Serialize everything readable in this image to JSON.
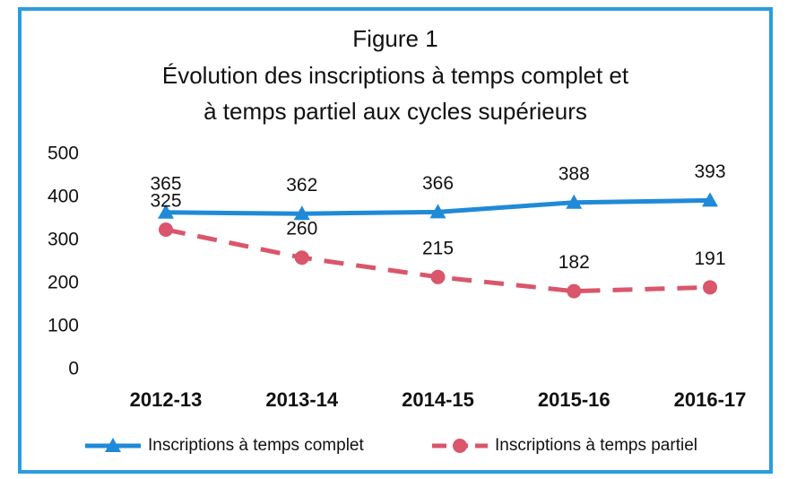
{
  "chart_data": {
    "type": "line",
    "title": "Figure 1",
    "subtitle": [
      "Évolution des inscriptions à temps complet et",
      "à temps partiel aux cycles supérieurs"
    ],
    "categories": [
      "2012-13",
      "2013-14",
      "2014-15",
      "2015-16",
      "2016-17"
    ],
    "series": [
      {
        "name": "Inscriptions à temps complet",
        "color": "#1f8ad8",
        "marker": "triangle",
        "dashed": false,
        "values": [
          365,
          362,
          366,
          388,
          393
        ]
      },
      {
        "name": "Inscriptions à temps partiel",
        "color": "#d9566b",
        "marker": "circle",
        "dashed": true,
        "values": [
          325,
          260,
          215,
          182,
          191
        ]
      }
    ],
    "ylim": [
      0,
      500
    ],
    "yticks": [
      0,
      100,
      200,
      300,
      400,
      500
    ],
    "grid": false,
    "legend": "bottom"
  }
}
